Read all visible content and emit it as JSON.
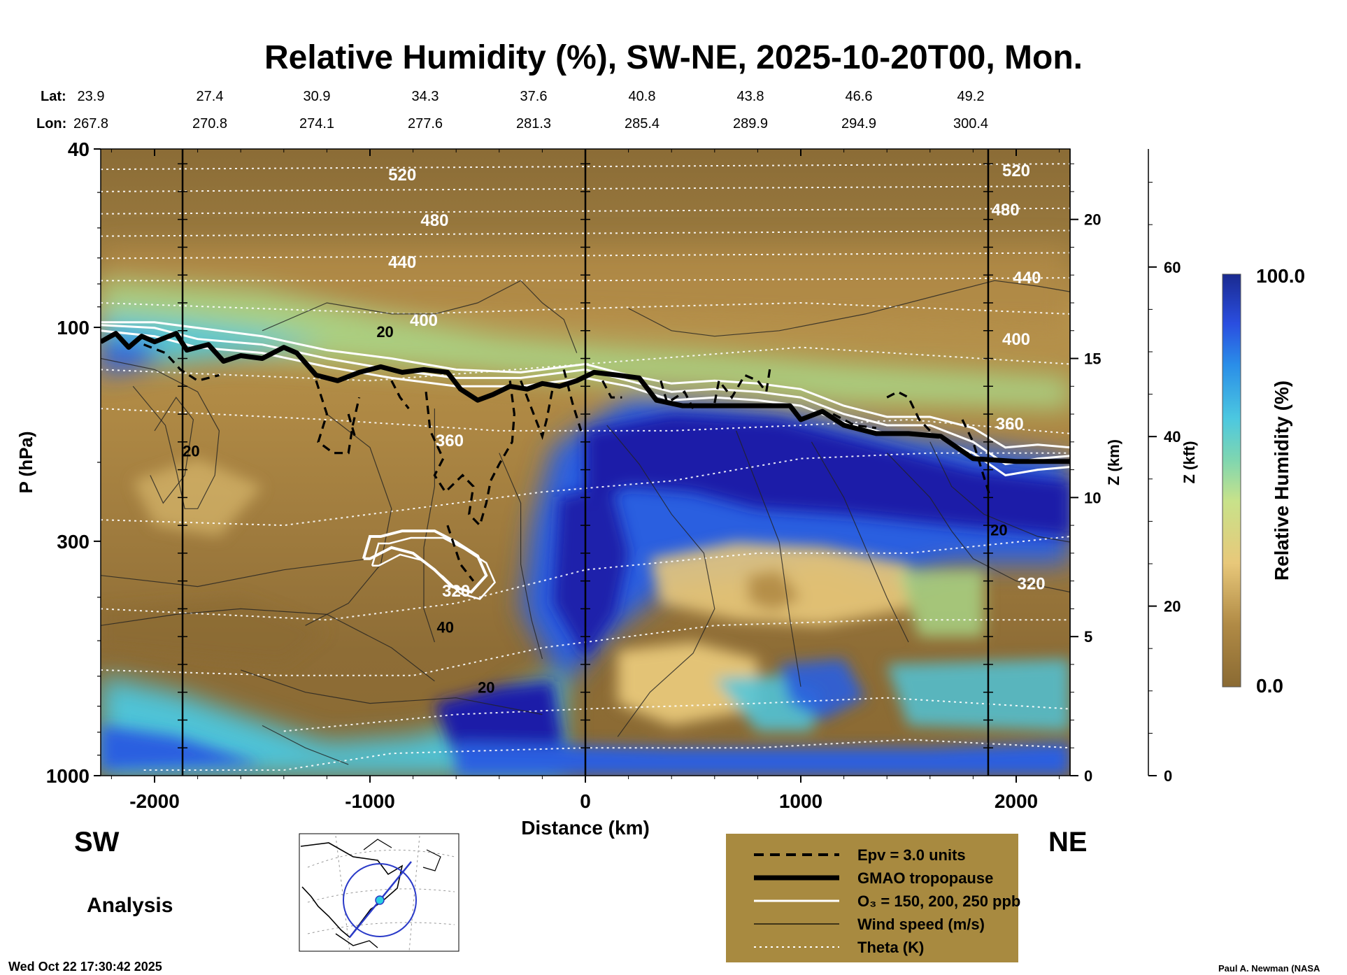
{
  "chart_data": {
    "type": "cross-section",
    "title": "Relative Humidity (%), SW-NE, 2025-10-20T00, Mon.",
    "xlabel": "Distance (km)",
    "ylabel": "P (hPa)",
    "xlim": [
      -2250,
      2250
    ],
    "ylim": [
      1000,
      40
    ],
    "y_scale": "log",
    "x_ticks": [
      -2000,
      -1000,
      0,
      1000,
      2000
    ],
    "x_tick_labels": [
      "-2000",
      "-1000",
      "0",
      "1000",
      "2000"
    ],
    "y_ticks": [
      40,
      100,
      300,
      1000
    ],
    "y_tick_labels": [
      "40",
      "100",
      "300",
      "1000"
    ],
    "z_km_axis": {
      "label": "Z (km)",
      "ticks": [
        0,
        5,
        10,
        15,
        20
      ],
      "tick_labels": [
        "0",
        "5",
        "10",
        "15",
        "20"
      ]
    },
    "z_kft_axis": {
      "label": "Z (kft)",
      "ticks": [
        0,
        20,
        40,
        60
      ],
      "tick_labels": [
        "0",
        "20",
        "40",
        "60"
      ]
    },
    "lat_label": "Lat:",
    "lon_label": "Lon:",
    "lat_values": [
      "23.9",
      "27.4",
      "30.9",
      "34.3",
      "37.6",
      "40.8",
      "43.8",
      "46.6",
      "49.2"
    ],
    "lon_values": [
      "267.8",
      "270.8",
      "274.1",
      "277.6",
      "281.3",
      "285.4",
      "289.9",
      "294.9",
      "300.4"
    ],
    "theta_labels": [
      {
        "text": "520",
        "x": -850,
        "p": 46
      },
      {
        "text": "480",
        "x": -700,
        "p": 58
      },
      {
        "text": "440",
        "x": -850,
        "p": 72
      },
      {
        "text": "400",
        "x": -750,
        "p": 97
      },
      {
        "text": "360",
        "x": -630,
        "p": 180
      },
      {
        "text": "320",
        "x": -600,
        "p": 390
      },
      {
        "text": "520",
        "x": 2000,
        "p": 45
      },
      {
        "text": "480",
        "x": 1950,
        "p": 55
      },
      {
        "text": "440",
        "x": 2050,
        "p": 78
      },
      {
        "text": "400",
        "x": 2000,
        "p": 107
      },
      {
        "text": "360",
        "x": 1970,
        "p": 165
      },
      {
        "text": "320",
        "x": 2070,
        "p": 375
      }
    ],
    "wind_labels": [
      {
        "text": "20",
        "x": -930,
        "p": 103
      },
      {
        "text": "20",
        "x": -1830,
        "p": 190
      },
      {
        "text": "40",
        "x": -650,
        "p": 470
      },
      {
        "text": "20",
        "x": -460,
        "p": 640
      },
      {
        "text": "20",
        "x": 1920,
        "p": 285
      }
    ],
    "tropopause_km": [
      [
        -2250,
        15.6
      ],
      [
        -2180,
        15.9
      ],
      [
        -2120,
        15.4
      ],
      [
        -2060,
        15.8
      ],
      [
        -2000,
        15.6
      ],
      [
        -1900,
        15.9
      ],
      [
        -1850,
        15.3
      ],
      [
        -1750,
        15.5
      ],
      [
        -1680,
        14.9
      ],
      [
        -1600,
        15.1
      ],
      [
        -1500,
        15.0
      ],
      [
        -1400,
        15.4
      ],
      [
        -1340,
        15.2
      ],
      [
        -1250,
        14.4
      ],
      [
        -1150,
        14.2
      ],
      [
        -1050,
        14.5
      ],
      [
        -950,
        14.7
      ],
      [
        -850,
        14.5
      ],
      [
        -750,
        14.6
      ],
      [
        -640,
        14.5
      ],
      [
        -580,
        13.9
      ],
      [
        -500,
        13.5
      ],
      [
        -430,
        13.7
      ],
      [
        -350,
        14.0
      ],
      [
        -270,
        13.9
      ],
      [
        -200,
        14.1
      ],
      [
        -120,
        14.0
      ],
      [
        -40,
        14.2
      ],
      [
        40,
        14.5
      ],
      [
        150,
        14.4
      ],
      [
        250,
        14.3
      ],
      [
        330,
        13.5
      ],
      [
        450,
        13.3
      ],
      [
        600,
        13.3
      ],
      [
        800,
        13.3
      ],
      [
        950,
        13.3
      ],
      [
        1000,
        12.8
      ],
      [
        1100,
        13.1
      ],
      [
        1200,
        12.6
      ],
      [
        1350,
        12.3
      ],
      [
        1500,
        12.3
      ],
      [
        1650,
        12.2
      ],
      [
        1800,
        11.4
      ],
      [
        2000,
        11.3
      ],
      [
        2250,
        11.3
      ]
    ],
    "o3_150_km": [
      [
        -2250,
        16.3
      ],
      [
        -2000,
        16.3
      ],
      [
        -1800,
        16.1
      ],
      [
        -1500,
        15.8
      ],
      [
        -1200,
        15.3
      ],
      [
        -900,
        15.0
      ],
      [
        -600,
        14.6
      ],
      [
        -300,
        14.5
      ],
      [
        0,
        14.8
      ],
      [
        200,
        14.4
      ],
      [
        400,
        14.1
      ],
      [
        600,
        14.2
      ],
      [
        800,
        14.1
      ],
      [
        1000,
        13.9
      ],
      [
        1200,
        13.3
      ],
      [
        1400,
        12.9
      ],
      [
        1600,
        12.9
      ],
      [
        1800,
        12.5
      ],
      [
        1950,
        11.8
      ],
      [
        2100,
        11.9
      ],
      [
        2250,
        11.8
      ]
    ],
    "o3_200_km": [
      [
        -2250,
        16.2
      ],
      [
        -2000,
        16.1
      ],
      [
        -1800,
        15.7
      ],
      [
        -1500,
        15.5
      ],
      [
        -1200,
        15.0
      ],
      [
        -900,
        14.6
      ],
      [
        -600,
        14.3
      ],
      [
        -300,
        14.3
      ],
      [
        0,
        14.6
      ],
      [
        200,
        14.2
      ],
      [
        400,
        13.8
      ],
      [
        600,
        13.9
      ],
      [
        800,
        13.8
      ],
      [
        1000,
        13.6
      ],
      [
        1200,
        13.0
      ],
      [
        1400,
        12.6
      ],
      [
        1600,
        12.6
      ],
      [
        1800,
        12.0
      ],
      [
        1950,
        11.2
      ],
      [
        2100,
        11.4
      ],
      [
        2250,
        11.5
      ]
    ],
    "o3_250_km": [
      [
        -2250,
        16.0
      ],
      [
        -2000,
        15.8
      ],
      [
        -1800,
        15.4
      ],
      [
        -1500,
        15.2
      ],
      [
        -1200,
        14.7
      ],
      [
        -900,
        14.3
      ],
      [
        -600,
        14.0
      ],
      [
        -300,
        14.0
      ],
      [
        0,
        14.3
      ],
      [
        200,
        14.0
      ],
      [
        400,
        13.5
      ],
      [
        600,
        13.6
      ],
      [
        800,
        13.5
      ],
      [
        1000,
        13.3
      ],
      [
        1200,
        12.7
      ],
      [
        1400,
        12.3
      ],
      [
        1600,
        12.3
      ],
      [
        1800,
        11.6
      ],
      [
        1950,
        10.8
      ],
      [
        2100,
        11.0
      ],
      [
        2250,
        11.1
      ]
    ],
    "o3_loop_km": [
      [
        -1030,
        7.8
      ],
      [
        -1000,
        8.6
      ],
      [
        -950,
        8.6
      ],
      [
        -850,
        8.8
      ],
      [
        -700,
        8.8
      ],
      [
        -600,
        8.4
      ],
      [
        -500,
        7.9
      ],
      [
        -460,
        7.2
      ],
      [
        -530,
        6.6
      ],
      [
        -620,
        6.8
      ],
      [
        -700,
        7.4
      ],
      [
        -800,
        8.0
      ],
      [
        -900,
        8.2
      ],
      [
        -1000,
        7.8
      ],
      [
        -1030,
        7.8
      ]
    ],
    "epv_segments_km": [
      [
        [
          -2050,
          15.5
        ],
        [
          -1950,
          15.2
        ],
        [
          -1880,
          14.6
        ],
        [
          -1800,
          14.2
        ],
        [
          -1700,
          14.4
        ]
      ],
      [
        [
          -1250,
          14.2
        ],
        [
          -1200,
          13.0
        ],
        [
          -1240,
          12.0
        ],
        [
          -1170,
          11.6
        ],
        [
          -1100,
          11.6
        ],
        [
          -1080,
          12.6
        ],
        [
          -1050,
          13.6
        ]
      ],
      [
        [
          -1100,
          13.0
        ],
        [
          -1070,
          12.2
        ]
      ],
      [
        [
          -900,
          14.2
        ],
        [
          -860,
          13.6
        ],
        [
          -820,
          13.2
        ]
      ],
      [
        [
          -740,
          13.8
        ],
        [
          -720,
          12.4
        ],
        [
          -660,
          11.4
        ],
        [
          -700,
          10.8
        ],
        [
          -650,
          10.2
        ],
        [
          -570,
          10.8
        ],
        [
          -520,
          10.4
        ],
        [
          -540,
          9.4
        ],
        [
          -490,
          9.0
        ],
        [
          -460,
          9.8
        ],
        [
          -440,
          10.6
        ],
        [
          -400,
          11.2
        ],
        [
          -340,
          12.0
        ],
        [
          -330,
          13.0
        ],
        [
          -350,
          14.2
        ]
      ],
      [
        [
          -640,
          9.0
        ],
        [
          -580,
          7.6
        ],
        [
          -520,
          7.0
        ]
      ],
      [
        [
          -300,
          14.2
        ],
        [
          -260,
          13.4
        ],
        [
          -200,
          12.2
        ],
        [
          -180,
          12.8
        ],
        [
          -150,
          14.0
        ]
      ],
      [
        [
          -100,
          14.6
        ],
        [
          -60,
          13.4
        ],
        [
          -20,
          12.4
        ]
      ],
      [
        [
          80,
          14.2
        ],
        [
          120,
          13.6
        ],
        [
          170,
          13.6
        ]
      ],
      [
        [
          350,
          14.2
        ],
        [
          380,
          13.4
        ],
        [
          460,
          13.8
        ],
        [
          500,
          13.2
        ]
      ],
      [
        [
          600,
          13.4
        ],
        [
          620,
          14.2
        ],
        [
          680,
          13.6
        ],
        [
          740,
          14.4
        ],
        [
          800,
          14.2
        ],
        [
          840,
          13.8
        ],
        [
          860,
          14.8
        ]
      ],
      [
        [
          1150,
          13.0
        ],
        [
          1250,
          12.6
        ],
        [
          1350,
          12.5
        ]
      ],
      [
        [
          1400,
          13.6
        ],
        [
          1450,
          13.8
        ],
        [
          1500,
          13.6
        ],
        [
          1550,
          12.8
        ],
        [
          1600,
          12.4
        ]
      ],
      [
        [
          1750,
          12.8
        ],
        [
          1800,
          12.0
        ],
        [
          1840,
          11.0
        ],
        [
          1880,
          10.0
        ]
      ]
    ],
    "legend": [
      {
        "style": "dashed-black",
        "label": "Epv = 3.0 units"
      },
      {
        "style": "thick-black",
        "label": "GMAO tropopause"
      },
      {
        "style": "solid-white",
        "label": "O₃ = 150, 200, 250 ppb"
      },
      {
        "style": "thin-black",
        "label": "Wind speed (m/s)"
      },
      {
        "style": "dotted-white",
        "label": "Theta (K)"
      }
    ],
    "colorbar": {
      "label": "Relative Humidity (%)",
      "max_label": "100.0",
      "min_label": "0.0",
      "range": [
        0,
        100
      ]
    },
    "colors": {
      "dry": "#8a6a33",
      "mid_dry": "#b08a45",
      "moist": "#e8c87a",
      "green": "#a9d98a",
      "cyan": "#4cc8e0",
      "blue": "#2a5ee0",
      "navy": "#1a1aa8",
      "legend_bg": "#a88a40"
    }
  },
  "header": {
    "sw_label": "SW",
    "ne_label": "NE",
    "analysis_label": "Analysis"
  },
  "footer": {
    "timestamp": "Wed Oct 22 17:30:42 2025",
    "credit": "Paul A. Newman (NASA"
  }
}
